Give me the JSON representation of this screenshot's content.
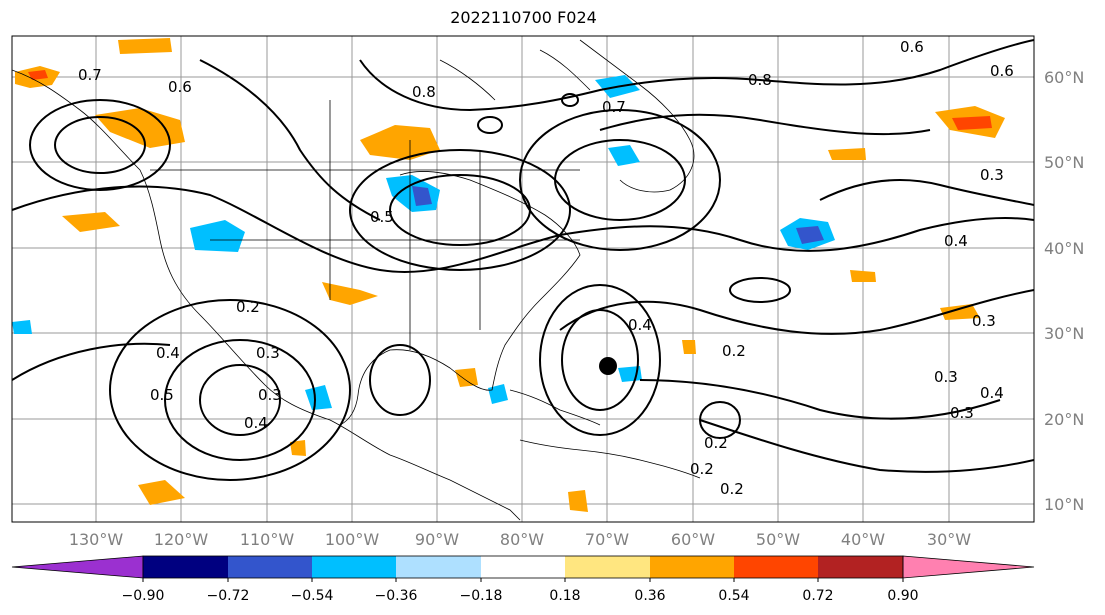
{
  "title": "2022110700 F024",
  "latitude_labels": [
    "60°N",
    "50°N",
    "40°N",
    "30°N",
    "20°N",
    "10°N"
  ],
  "longitude_labels": [
    "130°W",
    "120°W",
    "110°W",
    "100°W",
    "90°W",
    "80°W",
    "70°W",
    "60°W",
    "50°W",
    "40°W",
    "30°W"
  ],
  "colorbar": {
    "tick_labels": [
      "−0.90",
      "−0.72",
      "−0.54",
      "−0.36",
      "−0.18",
      "0.18",
      "0.36",
      "0.54",
      "0.72",
      "0.90"
    ],
    "colors": [
      "#9b30d0",
      "#000080",
      "#3355cc",
      "#00bfff",
      "#aee0ff",
      "#ffffff",
      "#ffe680",
      "#ffa500",
      "#ff4500",
      "#b22222",
      "#ff80b0"
    ]
  },
  "contour_labels": [
    "0.6",
    "0.8",
    "0.6",
    "0.8",
    "0.7",
    "0.5",
    "0.6",
    "0.7",
    "0.3",
    "0.4",
    "0.4",
    "0.2",
    "0.4",
    "0.5",
    "0.2",
    "0.3",
    "0.3",
    "0.4",
    "0.2",
    "0.2",
    "0.2",
    "0.3",
    "0.3",
    "0.4",
    "0.3"
  ]
}
